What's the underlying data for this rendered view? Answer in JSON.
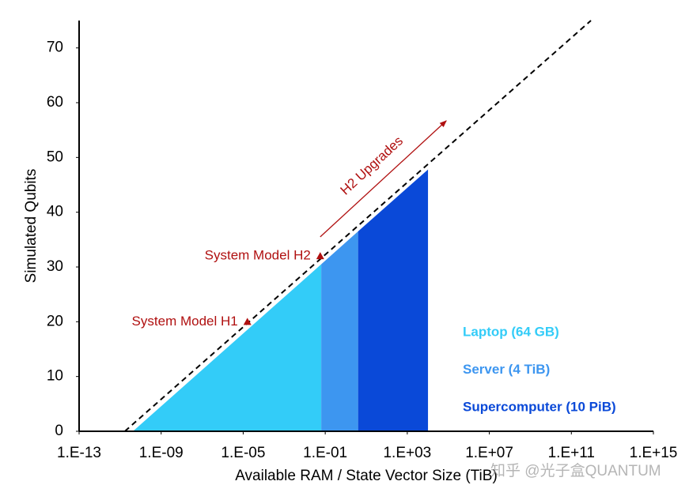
{
  "chart_data": {
    "type": "area",
    "xlabel": "Available RAM / State Vector Size (TiB)",
    "ylabel": "Simulated Qubits",
    "xscale": "log",
    "xlim": [
      1e-13,
      1000000000000000.0
    ],
    "ylim": [
      0,
      75
    ],
    "xticks": [
      {
        "value": 1e-13,
        "label": "1.E-13"
      },
      {
        "value": 1e-09,
        "label": "1.E-09"
      },
      {
        "value": 1e-05,
        "label": "1.E-05"
      },
      {
        "value": 0.1,
        "label": "1.E-01"
      },
      {
        "value": 1000,
        "label": "1.E+03"
      },
      {
        "value": 10000000.0,
        "label": "1.E+07"
      },
      {
        "value": 100000000000.0,
        "label": "1.E+11"
      },
      {
        "value": 1000000000000000.0,
        "label": "1.E+15"
      }
    ],
    "yticks": [
      0,
      10,
      20,
      30,
      40,
      50,
      60,
      70
    ],
    "grid": false,
    "legend": "lower right",
    "series": [
      {
        "name": "Laptop (64 GB)",
        "color": "#33ccf8",
        "x": [
          4.2e-11,
          0.064
        ],
        "values": [
          0,
          30.5
        ]
      },
      {
        "name": "Server (4 TiB)",
        "color": "#3d96f0",
        "x": [
          0.064,
          4
        ],
        "values": [
          30.5,
          36.5
        ]
      },
      {
        "name": "Supercomputer (10 PiB)",
        "color": "#0a49d8",
        "x": [
          4,
          10240
        ],
        "values": [
          36.5,
          47.8
        ]
      }
    ],
    "reference_line": {
      "x": [
        1.7e-11,
        900000000000.0
      ],
      "values": [
        0,
        75
      ],
      "color": "#000000",
      "dashed": true
    },
    "annotations": [
      {
        "text": "System Model H1",
        "x": 1.6e-05,
        "y": 20,
        "color": "#b01010"
      },
      {
        "text": "System Model H2",
        "x": 0.057,
        "y": 32,
        "color": "#b01010"
      }
    ],
    "arrow": {
      "text": "H2 Upgrades",
      "x": [
        0.057,
        80000
      ],
      "y": [
        35.5,
        56.7
      ],
      "color": "#b01010"
    },
    "watermark": "知乎 @光子盒QUANTUM"
  }
}
